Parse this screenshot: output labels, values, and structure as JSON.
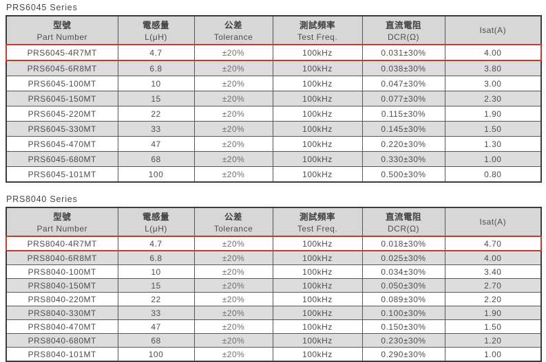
{
  "colors": {
    "header_bg": "#d7d7d7",
    "zebra_bg": "#dddddd",
    "row_bg": "#ffffff",
    "border_dark": "#3a3a3a",
    "grid": "#555555",
    "highlight_red": "#c43a30",
    "text": "#4d4d4d",
    "text_light": "#6f6f6f",
    "header_text": "#3f3f3f",
    "title_text": "#474747"
  },
  "columns": [
    {
      "zh": "型號",
      "en": "Part Number"
    },
    {
      "zh": "電感量",
      "en": "L(μH)"
    },
    {
      "zh": "公差",
      "en": "Tolerance"
    },
    {
      "zh": "測試頻率",
      "en": "Test Freq."
    },
    {
      "zh": "直流電阻",
      "en": "DCR(Ω)"
    },
    {
      "zh": "",
      "en": "Isat(A)"
    }
  ],
  "tables": [
    {
      "title": "PRS6045 Series",
      "highlight_row": 0,
      "rows": [
        [
          "PRS6045-4R7MT",
          "4.7",
          "±20%",
          "100kHz",
          "0.031±30%",
          "4.00"
        ],
        [
          "PRS6045-6R8MT",
          "6.8",
          "±20%",
          "100kHz",
          "0.038±30%",
          "3.80"
        ],
        [
          "PRS6045-100MT",
          "10",
          "±20%",
          "100kHz",
          "0.047±30%",
          "3.00"
        ],
        [
          "PRS6045-150MT",
          "15",
          "±20%",
          "100kHz",
          "0.077±30%",
          "2.30"
        ],
        [
          "PRS6045-220MT",
          "22",
          "±20%",
          "100kHz",
          "0.115±30%",
          "1.90"
        ],
        [
          "PRS6045-330MT",
          "33",
          "±20%",
          "100kHz",
          "0.145±30%",
          "1.50"
        ],
        [
          "PRS6045-470MT",
          "47",
          "±20%",
          "100kHz",
          "0.220±30%",
          "1.30"
        ],
        [
          "PRS6045-680MT",
          "68",
          "±20%",
          "100kHz",
          "0.330±30%",
          "1.00"
        ],
        [
          "PRS6045-101MT",
          "100",
          "±20%",
          "100kHz",
          "0.500±30%",
          "0.80"
        ]
      ]
    },
    {
      "title": "PRS8040 Series",
      "highlight_row": 0,
      "rows": [
        [
          "PRS8040-4R7MT",
          "4.7",
          "±20%",
          "100kHz",
          "0.018±30%",
          "4.70"
        ],
        [
          "PRS8040-6R8MT",
          "6.8",
          "±20%",
          "100kHz",
          "0.025±30%",
          "4.00"
        ],
        [
          "PRS8040-100MT",
          "10",
          "±20%",
          "100kHz",
          "0.034±30%",
          "3.40"
        ],
        [
          "PRS8040-150MT",
          "15",
          "±20%",
          "100kHz",
          "0.050±30%",
          "2.70"
        ],
        [
          "PRS8040-220MT",
          "22",
          "±20%",
          "100kHz",
          "0.089±30%",
          "2.20"
        ],
        [
          "PRS8040-330MT",
          "33",
          "±20%",
          "100kHz",
          "0.100±30%",
          "1.90"
        ],
        [
          "PRS8040-470MT",
          "47",
          "±20%",
          "100kHz",
          "0.150±30%",
          "1.50"
        ],
        [
          "PRS8040-680MT",
          "68",
          "±20%",
          "100kHz",
          "0.230±30%",
          "1.20"
        ],
        [
          "PRS8040-101MT",
          "100",
          "±20%",
          "100kHz",
          "0.290±30%",
          "1.00"
        ]
      ]
    }
  ]
}
